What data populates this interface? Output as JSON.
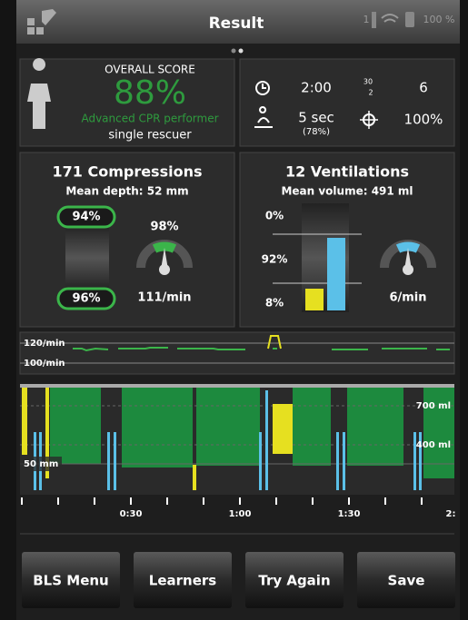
{
  "header": {
    "title": "Result",
    "person_count": "1",
    "battery": "100 %"
  },
  "overall": {
    "label": "OVERALL SCORE",
    "score": "88%",
    "rating": "Advanced CPR performer",
    "mode": "single rescuer"
  },
  "stats": {
    "time": "2:00",
    "cycles_top": "30",
    "cycles_bottom": "2",
    "cycles": "6",
    "hands_off": "5 sec",
    "hands_off_pct": "(78%)",
    "accuracy": "100%"
  },
  "compressions": {
    "title": "171 Compressions",
    "subtitle": "Mean depth: 52 mm",
    "top_pct": "94%",
    "bottom_pct": "96%",
    "rate_pct": "98%",
    "rate": "111/min"
  },
  "ventilations": {
    "title": "12 Ventilations",
    "subtitle": "Mean volume: 491 ml",
    "too_high": "0%",
    "ok": "92%",
    "too_low": "8%",
    "rate": "6/min"
  },
  "rate_chart": {
    "upper": "120/min",
    "lower": "100/min"
  },
  "depth_chart": {
    "depth_label": "50 mm",
    "vol_high": "700 ml",
    "vol_low": "400 ml"
  },
  "timeline": {
    "ticks": [
      "0:30",
      "1:00",
      "1:30",
      "2:"
    ]
  },
  "buttons": [
    "BLS Menu",
    "Learners",
    "Try Again",
    "Save"
  ]
}
